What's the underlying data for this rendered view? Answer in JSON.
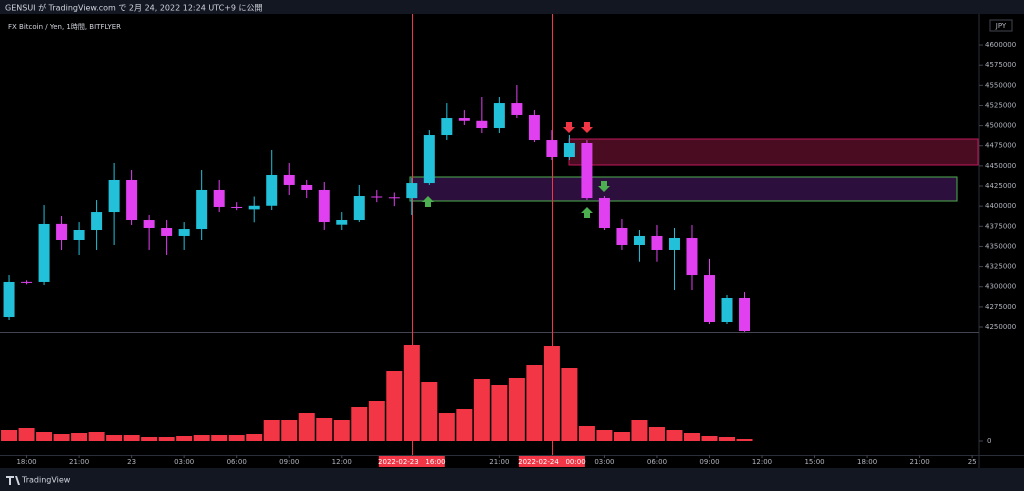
{
  "header": "GENSUI が TradingView.com で 2月 24, 2022 12:24 UTC+9 に公開",
  "footer": "TradingView",
  "chart_data": {
    "type": "candlestick",
    "title": "FX Bitcoin / Yen, 1時間, BITFLYER",
    "currency": "JPY",
    "x": [
      "2022-02-22 17:00",
      "2022-02-22 18:00",
      "2022-02-22 19:00",
      "2022-02-22 20:00",
      "2022-02-22 21:00",
      "2022-02-22 22:00",
      "2022-02-22 23:00",
      "2022-02-23 00:00",
      "2022-02-23 01:00",
      "2022-02-23 02:00",
      "2022-02-23 03:00",
      "2022-02-23 04:00",
      "2022-02-23 05:00",
      "2022-02-23 06:00",
      "2022-02-23 07:00",
      "2022-02-23 08:00",
      "2022-02-23 09:00",
      "2022-02-23 10:00",
      "2022-02-23 11:00",
      "2022-02-23 12:00",
      "2022-02-23 13:00",
      "2022-02-23 14:00",
      "2022-02-23 15:00",
      "2022-02-23 16:00",
      "2022-02-23 17:00",
      "2022-02-23 18:00",
      "2022-02-23 19:00",
      "2022-02-23 20:00",
      "2022-02-23 21:00",
      "2022-02-23 22:00",
      "2022-02-23 23:00",
      "2022-02-24 00:00",
      "2022-02-24 01:00",
      "2022-02-24 02:00",
      "2022-02-24 03:00",
      "2022-02-24 04:00",
      "2022-02-24 05:00",
      "2022-02-24 06:00",
      "2022-02-24 07:00",
      "2022-02-24 08:00",
      "2022-02-24 09:00",
      "2022-02-24 10:00",
      "2022-02-24 11:00"
    ],
    "open": [
      4262400,
      4306000,
      4305900,
      4378000,
      4358000,
      4370400,
      4392700,
      4432500,
      4382800,
      4372900,
      4363000,
      4371600,
      4420100,
      4399000,
      4396000,
      4400500,
      4438700,
      4426300,
      4420100,
      4377000,
      4382800,
      4412000,
      4411000,
      4410000,
      4428700,
      4488300,
      4509400,
      4506000,
      4497000,
      4528000,
      4513200,
      4482100,
      4461000,
      4478400,
      4410100,
      4372900,
      4351800,
      4363000,
      4345600,
      4360500,
      4314500,
      4256200,
      4286000
    ],
    "high": [
      4314500,
      4308000,
      4401400,
      4387800,
      4380300,
      4407600,
      4453600,
      4444900,
      4389000,
      4382800,
      4380300,
      4444900,
      4432500,
      4405000,
      4412000,
      4469700,
      4453600,
      4432500,
      4430000,
      4392700,
      4426300,
      4420000,
      4417000,
      4434900,
      4494500,
      4528000,
      4519300,
      4535500,
      4535500,
      4550400,
      4519300,
      4494500,
      4488300,
      4482100,
      4412600,
      4384000,
      4370400,
      4376600,
      4372900,
      4376600,
      4334500,
      4289700,
      4293400
    ],
    "low": [
      4258700,
      4303000,
      4302100,
      4345600,
      4339400,
      4345600,
      4351800,
      4376600,
      4345600,
      4339400,
      4345600,
      4358000,
      4392700,
      4395000,
      4380000,
      4395200,
      4413900,
      4410100,
      4370400,
      4370400,
      4380300,
      4405000,
      4400000,
      4389000,
      4426300,
      4482100,
      4500700,
      4490800,
      4490800,
      4509400,
      4479600,
      4457300,
      4457300,
      4407600,
      4370400,
      4345600,
      4331000,
      4331000,
      4295900,
      4295900,
      4253700,
      4253700,
      4244000
    ],
    "close": [
      4305900,
      4305000,
      4377900,
      4358000,
      4370400,
      4392700,
      4432500,
      4382800,
      4372900,
      4363000,
      4371600,
      4420100,
      4399000,
      4398000,
      4400500,
      4438700,
      4426300,
      4420100,
      4380300,
      4382800,
      4412600,
      4411000,
      4410000,
      4428700,
      4488300,
      4509400,
      4506000,
      4497000,
      4528000,
      4513200,
      4482100,
      4461000,
      4478400,
      4410100,
      4372900,
      4351800,
      4363000,
      4345600,
      4360500,
      4314500,
      4256200,
      4286000,
      4245000
    ],
    "volume": [
      11,
      13,
      9,
      7,
      8,
      9,
      6,
      6,
      4,
      4,
      5,
      6,
      6,
      6,
      7,
      21,
      21,
      28,
      23,
      21,
      34,
      40,
      70,
      96,
      59,
      28,
      32,
      62,
      56,
      63,
      76,
      95,
      73,
      15,
      11,
      9,
      21,
      14,
      11,
      8,
      5,
      4,
      2
    ],
    "up_color": "#22c1d9",
    "down_color": "#e040f0",
    "volume_color": "#f23645",
    "ylim": [
      4243800,
      4628600
    ],
    "yticks": [
      4250000,
      4275000,
      4300000,
      4325000,
      4350000,
      4375000,
      4400000,
      4425000,
      4450000,
      4475000,
      4500000,
      4525000,
      4550000,
      4575000,
      4600000
    ],
    "volume_ylim": [
      0,
      108
    ],
    "volume_yticks": [
      0
    ],
    "xlim": [
      "2022-02-22 16:29",
      "2022-02-25 00:20"
    ],
    "xticks": [
      {
        "value": "2022-02-22 18:00",
        "label": "18:00"
      },
      {
        "value": "2022-02-22 21:00",
        "label": "21:00"
      },
      {
        "value": "2022-02-23 00:00",
        "label": "23"
      },
      {
        "value": "2022-02-23 03:00",
        "label": "03:00"
      },
      {
        "value": "2022-02-23 06:00",
        "label": "06:00"
      },
      {
        "value": "2022-02-23 09:00",
        "label": "09:00"
      },
      {
        "value": "2022-02-23 12:00",
        "label": "12:00"
      },
      {
        "value": "2022-02-23 16:00",
        "label": "2022-02-23   16:00"
      },
      {
        "value": "2022-02-23 21:00",
        "label": "21:00"
      },
      {
        "value": "2022-02-24 00:00",
        "label": "2022-02-24   00:00"
      },
      {
        "value": "2022-02-24 03:00",
        "label": "03:00"
      },
      {
        "value": "2022-02-24 06:00",
        "label": "06:00"
      },
      {
        "value": "2022-02-24 09:00",
        "label": "09:00"
      },
      {
        "value": "2022-02-24 12:00",
        "label": "12:00"
      },
      {
        "value": "2022-02-24 15:00",
        "label": "15:00"
      },
      {
        "value": "2022-02-24 18:00",
        "label": "18:00"
      },
      {
        "value": "2022-02-24 21:00",
        "label": "21:00"
      },
      {
        "value": "2022-02-25 00:00",
        "label": "25"
      }
    ],
    "markers": [
      "2022-02-23 16:00",
      "2022-02-24 00:00"
    ],
    "marker_color": "#f23645",
    "grid": false
  }
}
